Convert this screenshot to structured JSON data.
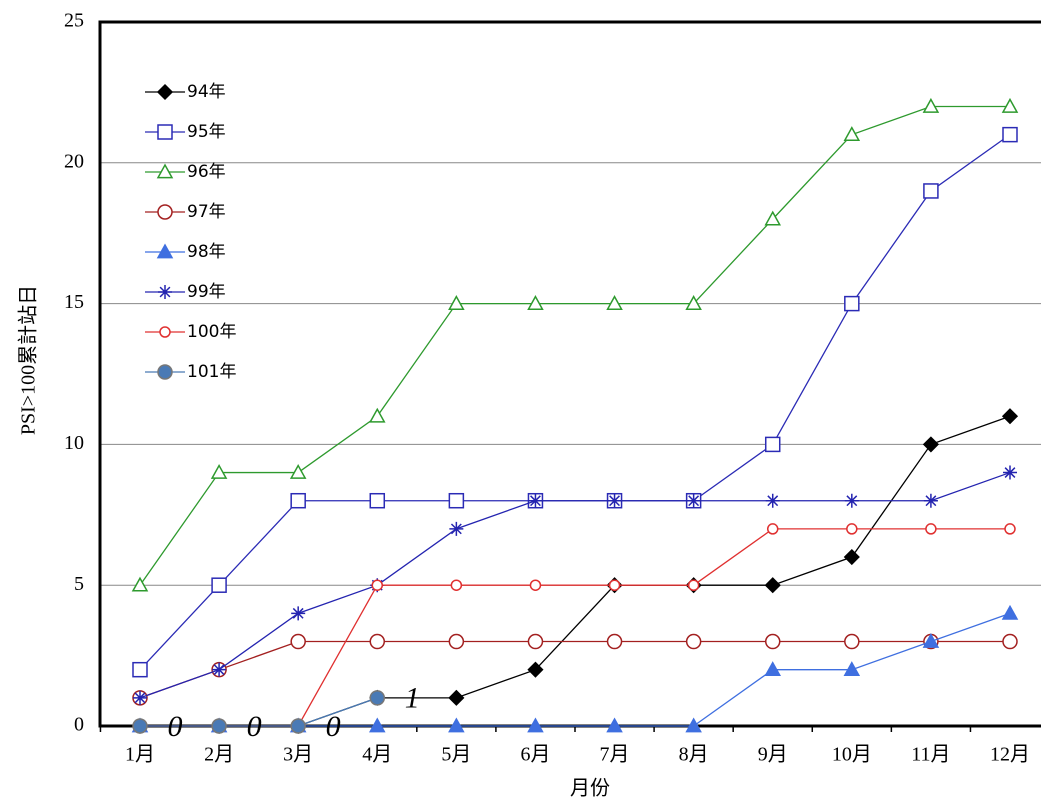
{
  "chart_data": {
    "type": "line",
    "x_label": "月份",
    "y_label": "PSI>100累計站日",
    "categories": [
      "1月",
      "2月",
      "3月",
      "4月",
      "5月",
      "6月",
      "7月",
      "8月",
      "9月",
      "10月",
      "11月",
      "12月"
    ],
    "ylim": [
      0,
      25
    ],
    "yticks": [
      0,
      5,
      10,
      15,
      20,
      25
    ],
    "grid": true,
    "legend": "upper left",
    "series": [
      {
        "name": "94年",
        "color": "#000000",
        "marker": "diamond",
        "values": [
          0,
          0,
          0,
          1,
          1,
          2,
          5,
          5,
          5,
          6,
          10,
          11
        ]
      },
      {
        "name": "95年",
        "color": "#2b2bb5",
        "marker": "square",
        "values": [
          2,
          5,
          8,
          8,
          8,
          8,
          8,
          8,
          10,
          15,
          19,
          21
        ]
      },
      {
        "name": "96年",
        "color": "#2e9a2e",
        "marker": "triangle",
        "values": [
          5,
          9,
          9,
          11,
          15,
          15,
          15,
          15,
          18,
          21,
          22,
          22
        ]
      },
      {
        "name": "97年",
        "color": "#a32020",
        "marker": "circle",
        "values": [
          1,
          2,
          3,
          3,
          3,
          3,
          3,
          3,
          3,
          3,
          3,
          3
        ]
      },
      {
        "name": "98年",
        "color": "#3f6fe0",
        "marker": "triangle-filled",
        "values": [
          0,
          0,
          0,
          0,
          0,
          0,
          0,
          0,
          2,
          2,
          3,
          4
        ]
      },
      {
        "name": "99年",
        "color": "#2424b0",
        "marker": "star",
        "values": [
          1,
          2,
          4,
          5,
          7,
          8,
          8,
          8,
          8,
          8,
          8,
          9
        ]
      },
      {
        "name": "100年",
        "color": "#e03030",
        "marker": "circle-small",
        "values": [
          0,
          0,
          0,
          5,
          5,
          5,
          5,
          5,
          7,
          7,
          7,
          7
        ]
      },
      {
        "name": "101年",
        "color": "#4a7ab5",
        "marker": "circle-filled",
        "data_labels": true,
        "values": [
          0,
          0,
          0,
          1,
          null,
          null,
          null,
          null,
          null,
          null,
          null,
          null
        ]
      }
    ]
  }
}
